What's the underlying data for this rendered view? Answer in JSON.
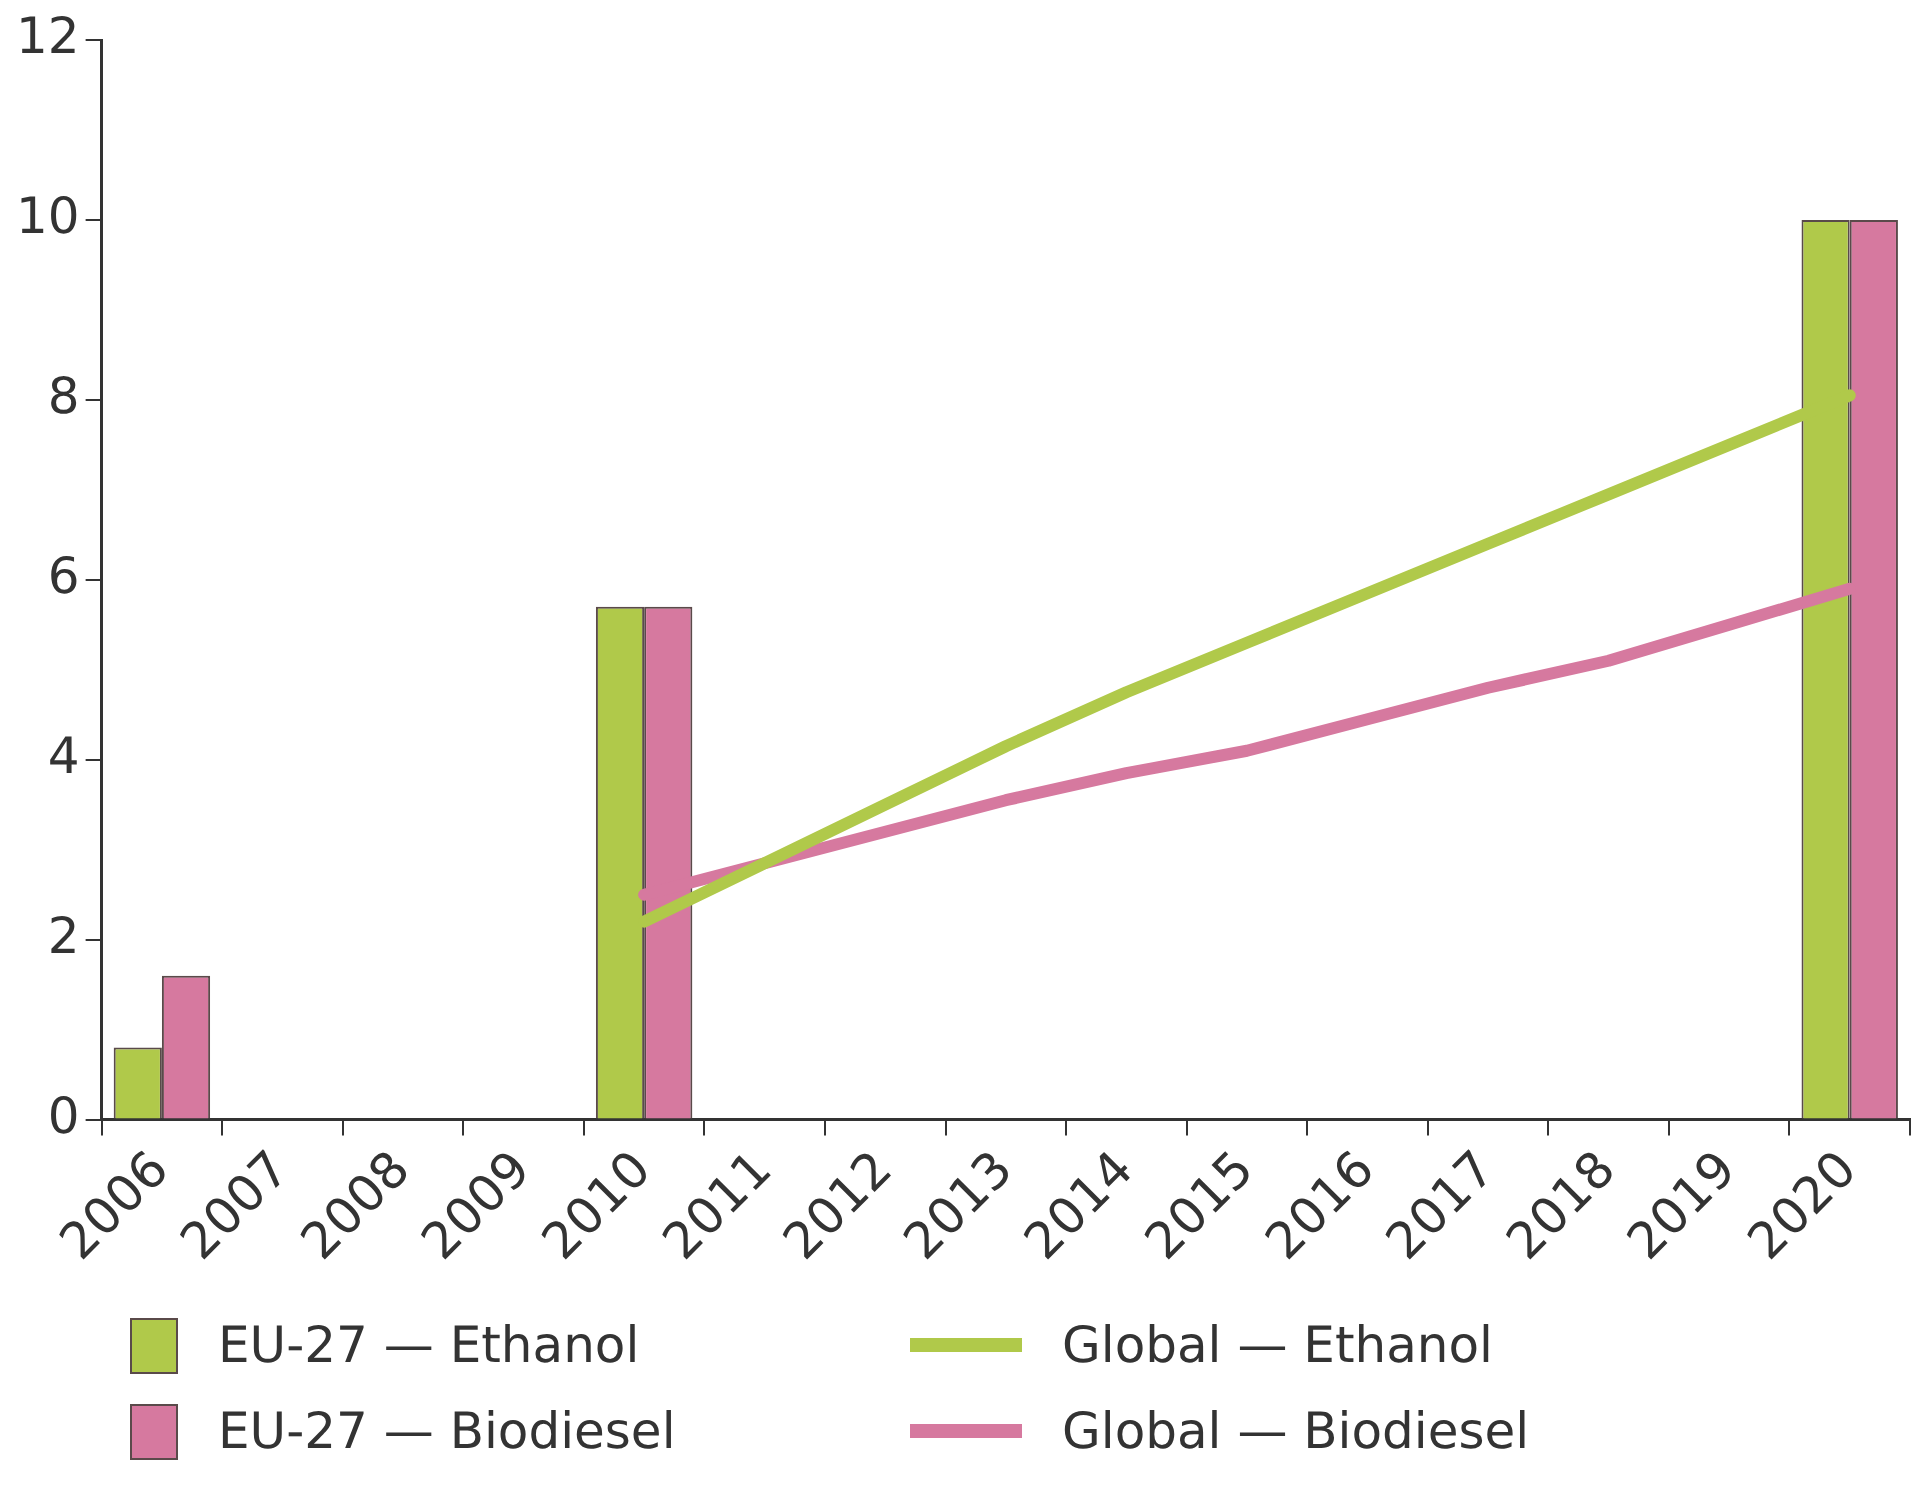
{
  "chart_data": {
    "type": "bar",
    "categories": [
      "2006",
      "2007",
      "2008",
      "2009",
      "2010",
      "2011",
      "2012",
      "2013",
      "2014",
      "2015",
      "2016",
      "2017",
      "2018",
      "2019",
      "2020"
    ],
    "series": [
      {
        "name": "EU-27 — Ethanol",
        "color": "#b0c94a",
        "values": [
          0.8,
          null,
          null,
          null,
          5.7,
          null,
          null,
          null,
          null,
          null,
          null,
          null,
          null,
          null,
          10
        ]
      },
      {
        "name": "Global — Ethanol",
        "type": "line",
        "color": "#b0c94a",
        "values": [
          null,
          null,
          null,
          null,
          2.2,
          2.85,
          3.5,
          4.15,
          4.75,
          5.3,
          5.85,
          6.4,
          6.95,
          7.5,
          8.05
        ]
      },
      {
        "name": "EU-27 — Biodiesel",
        "color": "#d6799f",
        "values": [
          1.6,
          null,
          null,
          null,
          5.7,
          null,
          null,
          null,
          null,
          null,
          null,
          null,
          null,
          null,
          10
        ]
      },
      {
        "name": "Global — Biodiesel",
        "type": "line",
        "color": "#d6799f",
        "values": [
          null,
          null,
          null,
          null,
          2.5,
          2.85,
          3.2,
          3.55,
          3.85,
          4.1,
          4.45,
          4.8,
          5.1,
          5.5,
          5.9
        ]
      }
    ],
    "ylim": [
      0,
      12
    ],
    "yticks": [
      0,
      2,
      4,
      6,
      8,
      10,
      12
    ],
    "grid": false,
    "legend": "bottom",
    "marker": "none",
    "line_style": "solid"
  }
}
